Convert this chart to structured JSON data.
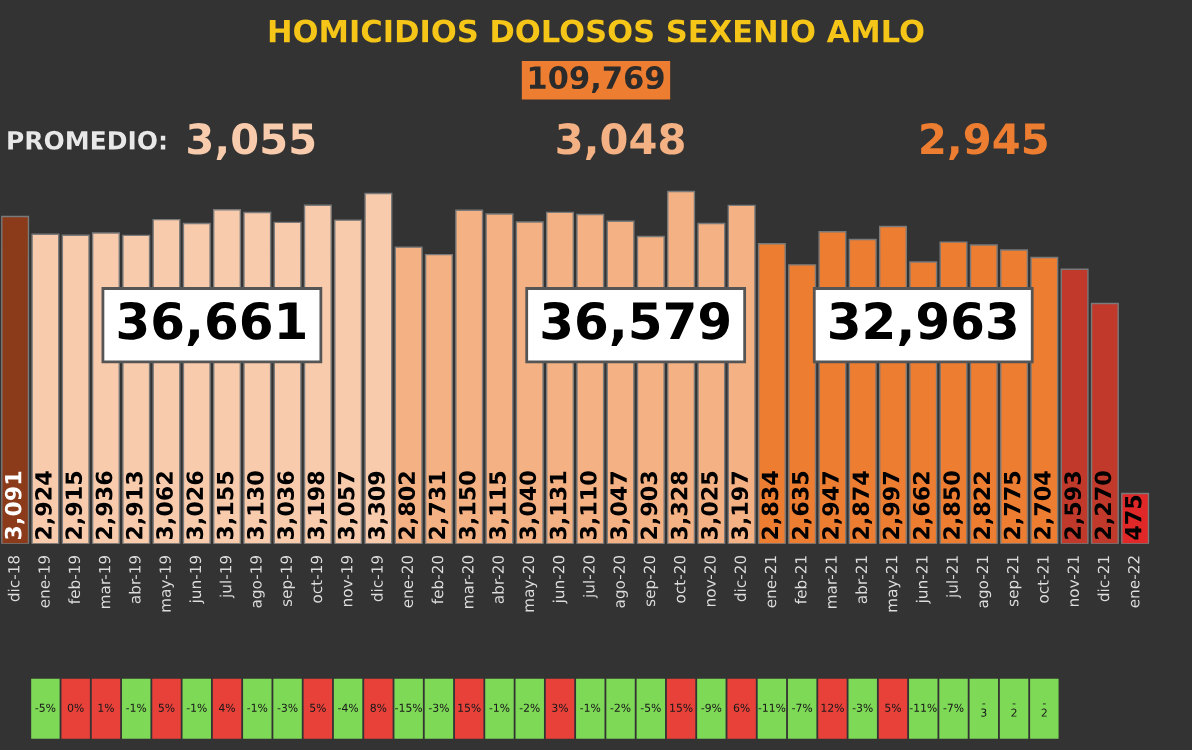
{
  "chart_data": {
    "type": "bar",
    "title": "HOMICIDIOS DOLOSOS SEXENIO AMLO",
    "categories": [
      "dic-18",
      "ene-19",
      "feb-19",
      "mar-19",
      "abr-19",
      "may-19",
      "jun-19",
      "jul-19",
      "ago-19",
      "sep-19",
      "oct-19",
      "nov-19",
      "dic-19",
      "ene-20",
      "feb-20",
      "mar-20",
      "abr-20",
      "may-20",
      "jun-20",
      "jul-20",
      "ago-20",
      "sep-20",
      "oct-20",
      "nov-20",
      "dic-20",
      "ene-21",
      "feb-21",
      "mar-21",
      "abr-21",
      "may-21",
      "jun-21",
      "jul-21",
      "ago-21",
      "sep-21",
      "oct-21",
      "nov-21",
      "dic-21",
      "ene-22"
    ],
    "values": [
      3091,
      2924,
      2915,
      2936,
      2913,
      3062,
      3026,
      3155,
      3130,
      3036,
      3198,
      3057,
      3309,
      2802,
      2731,
      3150,
      3115,
      3040,
      3131,
      3110,
      3047,
      2903,
      3328,
      3025,
      3197,
      2834,
      2635,
      2947,
      2874,
      2997,
      2662,
      2850,
      2822,
      2775,
      2704,
      2593,
      2270,
      475
    ],
    "colors": [
      "#8b3a1a",
      "#f8cbad",
      "#f8cbad",
      "#f8cbad",
      "#f8cbad",
      "#f8cbad",
      "#f8cbad",
      "#f8cbad",
      "#f8cbad",
      "#f8cbad",
      "#f8cbad",
      "#f8cbad",
      "#f8cbad",
      "#f4b183",
      "#f4b183",
      "#f4b183",
      "#f4b183",
      "#f4b183",
      "#f4b183",
      "#f4b183",
      "#f4b183",
      "#f4b183",
      "#f4b183",
      "#f4b183",
      "#f4b183",
      "#ed7d31",
      "#ed7d31",
      "#ed7d31",
      "#ed7d31",
      "#ed7d31",
      "#ed7d31",
      "#ed7d31",
      "#ed7d31",
      "#ed7d31",
      "#ed7d31",
      "#c0392b",
      "#c0392b",
      "#e02828"
    ],
    "value_labels": [
      "3,091",
      "2,924",
      "2,915",
      "2,936",
      "2,913",
      "3,062",
      "3,026",
      "3,155",
      "3,130",
      "3,036",
      "3,198",
      "3,057",
      "3,309",
      "2,802",
      "2,731",
      "3,150",
      "3,115",
      "3,040",
      "3,131",
      "3,110",
      "3,047",
      "2,903",
      "3,328",
      "3,025",
      "3,197",
      "2,834",
      "2,635",
      "2,947",
      "2,874",
      "2,997",
      "2,662",
      "2,850",
      "2,822",
      "2,775",
      "2,704",
      "2,593",
      "2,270",
      "475"
    ],
    "annotations": [
      "109,769",
      "PROMEDIO:",
      "3,055",
      "3,048",
      "2,945",
      "36,661",
      "36,579",
      "32,963",
      "-5%",
      "0%",
      "1%",
      "-1%",
      "5%",
      "-1%",
      "4%",
      "-1%",
      "-3%",
      "5%",
      "-4%",
      "8%",
      "-15%",
      "-3%",
      "15%",
      "-1%",
      "-2%",
      "3%",
      "-1%",
      "-2%",
      "-5%",
      "15%",
      "-9%",
      "6%",
      "-11%",
      "-7%",
      "12%",
      "-3%",
      "5%",
      "-11%",
      "-7%",
      "-\n3",
      "-\n2",
      "-\n2"
    ]
  }
}
